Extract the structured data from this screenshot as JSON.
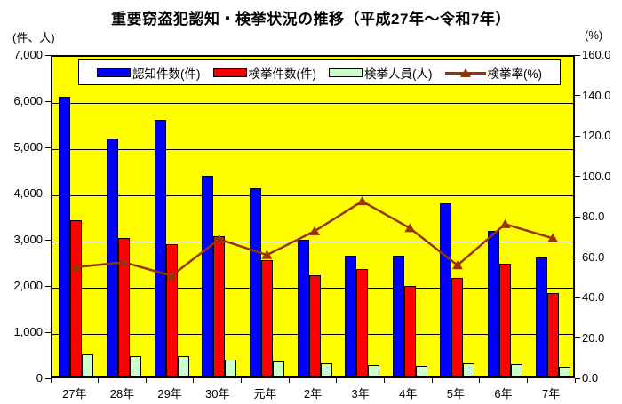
{
  "title": "重要窃盗犯認知・検挙状況の推移（平成27年～令和7年）",
  "left_axis_unit": "(件、人)",
  "right_axis_unit": "(%)",
  "colors": {
    "plot_background": "#ffff00",
    "page_background": "#ffffff",
    "reported_bar": "#0000ff",
    "cleared_bar": "#ff0000",
    "persons_bar": "#ccffcc",
    "rate_line": "#993300",
    "gridline": "#000000"
  },
  "legend": {
    "items": [
      {
        "label": "認知件数(件)",
        "swatch": "bar",
        "color": "#0000ff"
      },
      {
        "label": "検挙件数(件)",
        "swatch": "bar",
        "color": "#ff0000"
      },
      {
        "label": "検挙人員(人)",
        "swatch": "bar",
        "color": "#ccffcc"
      },
      {
        "label": "検挙率(%)",
        "swatch": "line",
        "color": "#993300"
      }
    ]
  },
  "chart_data": {
    "type": "bar",
    "title": "重要窃盗犯認知・検挙状況の推移（平成27年～令和7年）",
    "categories": [
      "27年",
      "28年",
      "29年",
      "30年",
      "元年",
      "2年",
      "3年",
      "4年",
      "5年",
      "6年",
      "7年"
    ],
    "series": [
      {
        "name": "認知件数(件)",
        "type": "bar",
        "axis": "left",
        "color": "#0000ff",
        "values": [
          6050,
          5150,
          5560,
          4350,
          4070,
          2970,
          2620,
          2620,
          3750,
          3160,
          2580
        ]
      },
      {
        "name": "検挙件数(件)",
        "type": "bar",
        "axis": "left",
        "color": "#ff0000",
        "values": [
          3380,
          3000,
          2870,
          3030,
          2520,
          2190,
          2320,
          1970,
          2130,
          2440,
          1810
        ]
      },
      {
        "name": "検挙人員(人)",
        "type": "bar",
        "axis": "left",
        "color": "#ccffcc",
        "values": [
          480,
          450,
          435,
          360,
          330,
          290,
          245,
          230,
          290,
          275,
          210
        ]
      },
      {
        "name": "検挙率(%)",
        "type": "line",
        "axis": "right",
        "color": "#993300",
        "marker": "triangle",
        "values": [
          55.9,
          58.3,
          51.6,
          69.7,
          61.9,
          73.7,
          88.5,
          75.2,
          56.8,
          77.2,
          70.2
        ]
      }
    ],
    "left_axis": {
      "label": "(件、人)",
      "min": 0,
      "max": 7000,
      "step": 1000,
      "tick_labels": [
        "0",
        "1,000",
        "2,000",
        "3,000",
        "4,000",
        "5,000",
        "6,000",
        "7,000"
      ]
    },
    "right_axis": {
      "label": "(%)",
      "min": 0,
      "max": 160,
      "step": 20,
      "tick_labels": [
        "0.0",
        "20.0",
        "40.0",
        "60.0",
        "80.0",
        "100.0",
        "120.0",
        "140.0",
        "160.0"
      ]
    },
    "grid": "horizontal-left-axis",
    "legend_position": "top-inside",
    "plot_bg": "#ffff00"
  }
}
